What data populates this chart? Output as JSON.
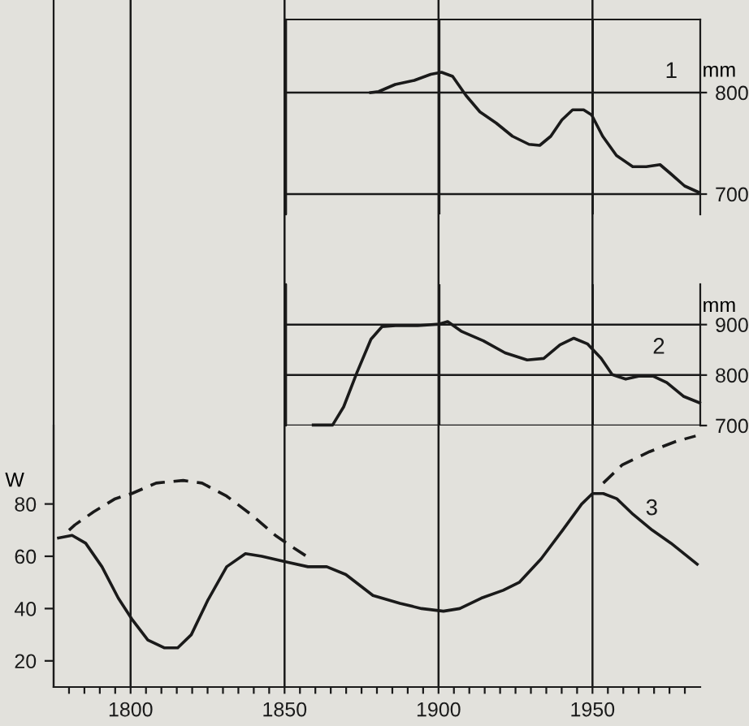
{
  "chart_data": [
    {
      "type": "line",
      "ylabel": "mm",
      "xlim": [
        1850,
        1985
      ],
      "ylim": [
        680,
        872
      ],
      "xticks": [
        1850,
        1900,
        1950
      ],
      "yticks": [
        700,
        800
      ],
      "tick_labels": "y",
      "grid": true,
      "legend": false,
      "marker": "none",
      "x": [
        1877.6,
        1880.2,
        1885.6,
        1891.8,
        1897.2,
        1900.7,
        1904.3,
        1908.7,
        1913.2,
        1918.5,
        1923.8,
        1929.2,
        1932.7,
        1936.3,
        1939.9,
        1943.4,
        1947,
        1949.6,
        1953.2,
        1957.7,
        1963,
        1967.4,
        1971.9,
        1975.4,
        1979.9,
        1984.3
      ],
      "series": [
        {
          "color": "#1a1a1a",
          "line_style": "solid",
          "values": [
            800,
            801,
            808,
            812,
            818,
            820,
            816,
            797,
            781,
            770,
            757,
            749,
            748,
            757,
            773,
            783,
            783,
            778,
            757,
            738,
            727,
            727,
            729,
            720,
            708,
            702
          ]
        }
      ],
      "annotations": [
        "1"
      ]
    },
    {
      "type": "line",
      "ylabel": "mm",
      "xlim": [
        1850,
        1985
      ],
      "ylim": [
        700,
        980
      ],
      "xticks": [
        1850,
        1900,
        1950
      ],
      "yticks": [
        700,
        800,
        900
      ],
      "tick_labels": "y",
      "grid": true,
      "legend": false,
      "marker": "none",
      "x": [
        1858.9,
        1865.2,
        1868.8,
        1873.2,
        1877.7,
        1881.3,
        1885.7,
        1892.9,
        1900,
        1902.7,
        1907.1,
        1914.3,
        1921.4,
        1928.6,
        1934,
        1939.3,
        1943.8,
        1948.2,
        1952.7,
        1956.3,
        1960.7,
        1965.2,
        1969.6,
        1974.1,
        1979.5,
        1984.8
      ],
      "series": [
        {
          "color": "#1a1a1a",
          "line_style": "solid",
          "values": [
            701,
            701,
            737,
            806,
            871,
            896,
            898,
            898,
            901,
            906,
            887,
            868,
            844,
            830,
            833,
            860,
            873,
            862,
            833,
            801,
            792,
            798,
            798,
            785,
            758,
            745
          ]
        }
      ],
      "annotations": [
        "2"
      ]
    },
    {
      "type": "line",
      "ylabel": "W",
      "xlim": [
        1775,
        1985
      ],
      "ylim": [
        10,
        110
      ],
      "yticks": [
        20,
        40,
        60,
        80
      ],
      "xticks": [
        {
          "value": 1780,
          "label": null
        },
        {
          "value": 1785,
          "label": null
        },
        {
          "value": 1790,
          "label": null
        },
        {
          "value": 1795,
          "label": null
        },
        1800,
        {
          "value": 1805,
          "label": null
        },
        {
          "value": 1810,
          "label": null
        },
        {
          "value": 1815,
          "label": null
        },
        {
          "value": 1820,
          "label": null
        },
        {
          "value": 1825,
          "label": null
        },
        {
          "value": 1830,
          "label": null
        },
        {
          "value": 1835,
          "label": null
        },
        {
          "value": 1840,
          "label": null
        },
        {
          "value": 1845,
          "label": null
        },
        1850,
        {
          "value": 1855,
          "label": null
        },
        {
          "value": 1860,
          "label": null
        },
        {
          "value": 1865,
          "label": null
        },
        {
          "value": 1870,
          "label": null
        },
        {
          "value": 1875,
          "label": null
        },
        {
          "value": 1880,
          "label": null
        },
        {
          "value": 1885,
          "label": null
        },
        {
          "value": 1890,
          "label": null
        },
        {
          "value": 1895,
          "label": null
        },
        1900,
        {
          "value": 1905,
          "label": null
        },
        {
          "value": 1910,
          "label": null
        },
        {
          "value": 1915,
          "label": null
        },
        {
          "value": 1920,
          "label": null
        },
        {
          "value": 1925,
          "label": null
        },
        {
          "value": 1930,
          "label": null
        },
        {
          "value": 1935,
          "label": null
        },
        {
          "value": 1940,
          "label": null
        },
        {
          "value": 1945,
          "label": null
        },
        1950,
        {
          "value": 1955,
          "label": null
        },
        {
          "value": 1960,
          "label": null
        },
        {
          "value": 1965,
          "label": null
        },
        {
          "value": 1970,
          "label": null
        },
        {
          "value": 1975,
          "label": null
        },
        {
          "value": 1980,
          "label": null
        }
      ],
      "grid": "x",
      "legend": false,
      "marker": "none",
      "series": [
        {
          "color": "#1a1a1a",
          "line_style": "solid",
          "x": [
            1776.6,
            1781,
            1785.4,
            1790.7,
            1796,
            1800.4,
            1805.6,
            1810.9,
            1815.3,
            1819.7,
            1825,
            1831.2,
            1837.3,
            1842.6,
            1850,
            1857.6,
            1863.7,
            1869.9,
            1878.7,
            1887.5,
            1894.5,
            1901.6,
            1906.9,
            1913.9,
            1921,
            1926.2,
            1933.3,
            1940.3,
            1946.5,
            1950,
            1953.5,
            1957.9,
            1963.2,
            1969.4,
            1975.5,
            1984
          ],
          "values": [
            67,
            68,
            65,
            56,
            44,
            36,
            28,
            25,
            25,
            30,
            43,
            56,
            61,
            60,
            58,
            56,
            56,
            53,
            45,
            42,
            40,
            39,
            40,
            44,
            47,
            50,
            59,
            70,
            80,
            84,
            84,
            82,
            76,
            70,
            65,
            57
          ]
        },
        {
          "color": "#1a1a1a",
          "line_style": "dashed",
          "x": [
            1780,
            1781.9,
            1788,
            1795,
            1800.4,
            1808.3,
            1817.1,
            1823.2,
            1831.2,
            1839.1,
            1847,
            1853.2,
            1858.5,
            1905,
            1953.5,
            1959.7,
            1968.5,
            1977.3,
            1983.5
          ],
          "values": [
            70,
            72,
            77,
            82,
            84,
            88,
            89,
            88,
            83,
            76,
            68,
            63,
            59,
            null,
            88,
            95,
            100,
            104,
            106
          ]
        }
      ],
      "annotations": [
        "3"
      ]
    }
  ]
}
